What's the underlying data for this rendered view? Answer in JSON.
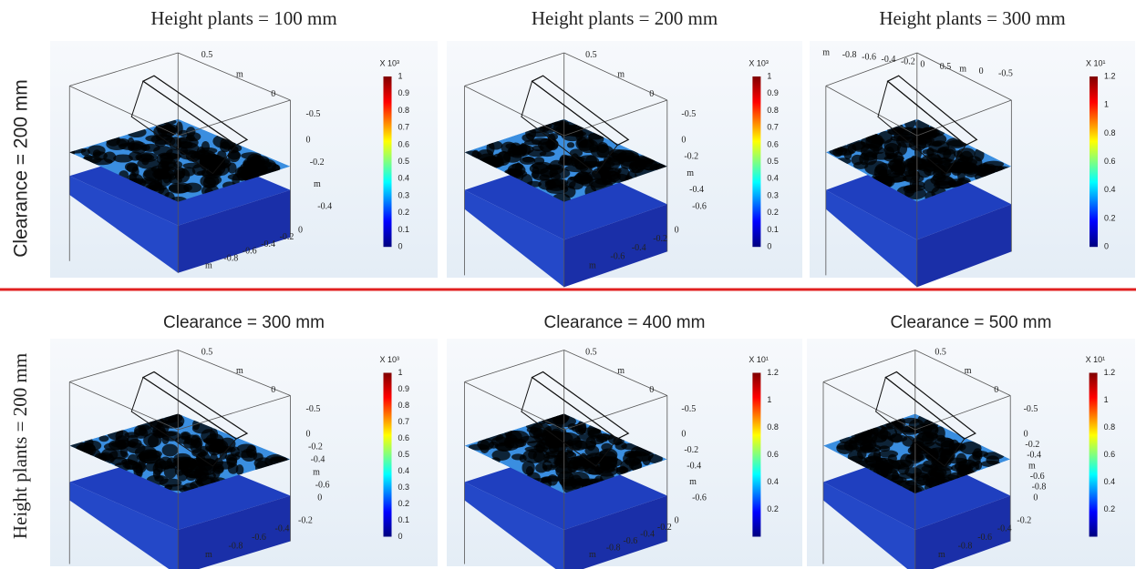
{
  "row_labels": [
    "Clearance = 200 mm",
    "Height plants = 200 mm"
  ],
  "panels": [
    {
      "title": "Height plants = 100 mm",
      "colorbar": {
        "multiplier": "X 10³",
        "ticks": [
          1,
          0.9,
          0.8,
          0.7,
          0.6,
          0.5,
          0.4,
          0.3,
          0.2,
          0.1,
          0
        ]
      },
      "axis_labels": {
        "top": [
          "0.5",
          "m",
          "0",
          "-0.5"
        ],
        "right": [
          "0",
          "-0.2",
          "m",
          "-0.4"
        ],
        "bottom": [
          "0",
          "-0.2",
          "-0.4",
          "-0.6",
          "-0.8",
          "m"
        ]
      }
    },
    {
      "title": "Height plants = 200 mm",
      "colorbar": {
        "multiplier": "X 10³",
        "ticks": [
          1,
          0.9,
          0.8,
          0.7,
          0.6,
          0.5,
          0.4,
          0.3,
          0.2,
          0.1,
          0
        ]
      },
      "axis_labels": {
        "top": [
          "0.5",
          "m",
          "0",
          "-0.5"
        ],
        "right": [
          "0",
          "-0.2",
          "m",
          "-0.4",
          "-0.6"
        ],
        "bottom": [
          "0",
          "-0.2",
          "-0.4",
          "-0.6",
          "m"
        ]
      }
    },
    {
      "title": "Height plants = 300 mm",
      "colorbar": {
        "multiplier": "X 10¹",
        "ticks": [
          1.2,
          1,
          0.8,
          0.6,
          0.4,
          0.2,
          0
        ]
      },
      "axis_labels": {
        "top": [
          "m",
          "-0.8",
          "-0.6",
          "-0.4",
          "-0.2",
          "0",
          "0.5",
          "m",
          "0",
          "-0.5"
        ],
        "right": [],
        "bottom": []
      }
    },
    {
      "title": "Clearance = 300 mm",
      "colorbar": {
        "multiplier": "X 10³",
        "ticks": [
          1,
          0.9,
          0.8,
          0.7,
          0.6,
          0.5,
          0.4,
          0.3,
          0.2,
          0.1,
          0
        ]
      },
      "axis_labels": {
        "top": [
          "0.5",
          "m",
          "0",
          "-0.5"
        ],
        "right": [
          "0",
          "-0.2",
          "-0.4",
          "m",
          "-0.6",
          "0"
        ],
        "bottom": [
          "-0.2",
          "-0.4",
          "-0.6",
          "-0.8",
          "m"
        ]
      }
    },
    {
      "title": "Clearance = 400 mm",
      "colorbar": {
        "multiplier": "X 10¹",
        "ticks": [
          1.2,
          1,
          0.8,
          0.6,
          0.4,
          0.2
        ]
      },
      "axis_labels": {
        "top": [
          "0.5",
          "m",
          "0",
          "-0.5"
        ],
        "right": [
          "0",
          "-0.2",
          "-0.4",
          "m",
          "-0.6"
        ],
        "bottom": [
          "0",
          "-0.2",
          "-0.4",
          "-0.6",
          "-0.8",
          "m"
        ]
      }
    },
    {
      "title": "Clearance = 500 mm",
      "colorbar": {
        "multiplier": "X 10¹",
        "ticks": [
          1.2,
          1,
          0.8,
          0.6,
          0.4,
          0.2
        ]
      },
      "axis_labels": {
        "top": [
          "0.5",
          "m",
          "0",
          "-0.5"
        ],
        "right": [
          "0",
          "-0.2",
          "-0.4",
          "m",
          "-0.6",
          "-0.8",
          "0"
        ],
        "bottom": [
          "-0.2",
          "-0.4",
          "-0.6",
          "-0.8",
          "m"
        ]
      }
    }
  ]
}
